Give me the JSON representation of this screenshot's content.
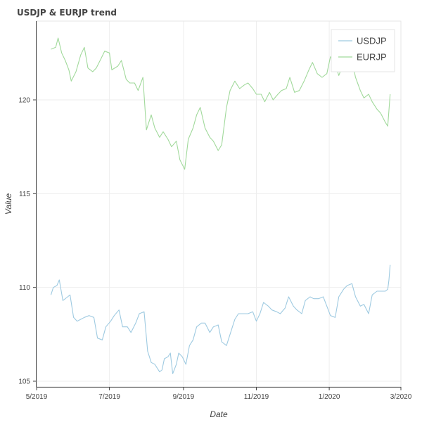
{
  "chart_data": {
    "type": "line",
    "title": "USDJP & EURJP trend",
    "xlabel": "Date",
    "ylabel": "Value",
    "xlim": [
      "2019-05-01",
      "2020-03-01"
    ],
    "ylim": [
      104.7,
      124.2
    ],
    "x_ticks": [
      {
        "date": "2019-05-01",
        "label": "5/2019"
      },
      {
        "date": "2019-07-01",
        "label": "7/2019"
      },
      {
        "date": "2019-09-01",
        "label": "9/2019"
      },
      {
        "date": "2019-11-01",
        "label": "11/2019"
      },
      {
        "date": "2020-01-01",
        "label": "1/2020"
      },
      {
        "date": "2020-03-01",
        "label": "3/2020"
      }
    ],
    "y_ticks": [
      105,
      110,
      115,
      120
    ],
    "grid": true,
    "legend_position": "top-right",
    "series": [
      {
        "name": "USDJP",
        "color": "#9ecae1",
        "points": [
          [
            "2019-05-13",
            109.6
          ],
          [
            "2019-05-15",
            110.0
          ],
          [
            "2019-05-18",
            110.1
          ],
          [
            "2019-05-20",
            110.4
          ],
          [
            "2019-05-23",
            109.3
          ],
          [
            "2019-05-27",
            109.5
          ],
          [
            "2019-05-29",
            109.6
          ],
          [
            "2019-06-01",
            108.4
          ],
          [
            "2019-06-04",
            108.2
          ],
          [
            "2019-06-07",
            108.3
          ],
          [
            "2019-06-10",
            108.4
          ],
          [
            "2019-06-14",
            108.5
          ],
          [
            "2019-06-18",
            108.4
          ],
          [
            "2019-06-21",
            107.3
          ],
          [
            "2019-06-25",
            107.2
          ],
          [
            "2019-06-28",
            107.9
          ],
          [
            "2019-07-02",
            108.2
          ],
          [
            "2019-07-05",
            108.5
          ],
          [
            "2019-07-09",
            108.8
          ],
          [
            "2019-07-12",
            107.9
          ],
          [
            "2019-07-16",
            107.9
          ],
          [
            "2019-07-19",
            107.6
          ],
          [
            "2019-07-23",
            108.1
          ],
          [
            "2019-07-26",
            108.6
          ],
          [
            "2019-07-30",
            108.7
          ],
          [
            "2019-08-02",
            106.6
          ],
          [
            "2019-08-05",
            106.0
          ],
          [
            "2019-08-08",
            105.9
          ],
          [
            "2019-08-12",
            105.5
          ],
          [
            "2019-08-14",
            105.6
          ],
          [
            "2019-08-16",
            106.2
          ],
          [
            "2019-08-19",
            106.3
          ],
          [
            "2019-08-21",
            106.5
          ],
          [
            "2019-08-23",
            105.4
          ],
          [
            "2019-08-26",
            105.9
          ],
          [
            "2019-08-28",
            106.5
          ],
          [
            "2019-08-31",
            106.3
          ],
          [
            "2019-09-03",
            105.9
          ],
          [
            "2019-09-06",
            106.9
          ],
          [
            "2019-09-09",
            107.2
          ],
          [
            "2019-09-12",
            107.9
          ],
          [
            "2019-09-16",
            108.1
          ],
          [
            "2019-09-19",
            108.1
          ],
          [
            "2019-09-23",
            107.6
          ],
          [
            "2019-09-26",
            107.9
          ],
          [
            "2019-09-30",
            108.0
          ],
          [
            "2019-10-03",
            107.1
          ],
          [
            "2019-10-07",
            106.9
          ],
          [
            "2019-10-10",
            107.5
          ],
          [
            "2019-10-14",
            108.3
          ],
          [
            "2019-10-17",
            108.6
          ],
          [
            "2019-10-21",
            108.6
          ],
          [
            "2019-10-25",
            108.6
          ],
          [
            "2019-10-29",
            108.7
          ],
          [
            "2019-11-01",
            108.2
          ],
          [
            "2019-11-04",
            108.6
          ],
          [
            "2019-11-07",
            109.2
          ],
          [
            "2019-11-11",
            109.0
          ],
          [
            "2019-11-14",
            108.8
          ],
          [
            "2019-11-18",
            108.7
          ],
          [
            "2019-11-21",
            108.6
          ],
          [
            "2019-11-25",
            108.9
          ],
          [
            "2019-11-28",
            109.5
          ],
          [
            "2019-12-02",
            109.0
          ],
          [
            "2019-12-05",
            108.8
          ],
          [
            "2019-12-09",
            108.6
          ],
          [
            "2019-12-12",
            109.3
          ],
          [
            "2019-12-16",
            109.5
          ],
          [
            "2019-12-19",
            109.4
          ],
          [
            "2019-12-23",
            109.4
          ],
          [
            "2019-12-27",
            109.5
          ],
          [
            "2019-12-30",
            109.0
          ],
          [
            "2020-01-02",
            108.5
          ],
          [
            "2020-01-06",
            108.4
          ],
          [
            "2020-01-09",
            109.5
          ],
          [
            "2020-01-13",
            109.9
          ],
          [
            "2020-01-16",
            110.1
          ],
          [
            "2020-01-20",
            110.2
          ],
          [
            "2020-01-23",
            109.5
          ],
          [
            "2020-01-27",
            109.0
          ],
          [
            "2020-01-30",
            109.1
          ],
          [
            "2020-02-03",
            108.6
          ],
          [
            "2020-02-06",
            109.6
          ],
          [
            "2020-02-10",
            109.8
          ],
          [
            "2020-02-13",
            109.8
          ],
          [
            "2020-02-17",
            109.8
          ],
          [
            "2020-02-19",
            109.9
          ],
          [
            "2020-02-20",
            110.4
          ],
          [
            "2020-02-21",
            111.2
          ]
        ]
      },
      {
        "name": "EURJP",
        "color": "#a1d99b",
        "points": [
          [
            "2019-05-13",
            122.7
          ],
          [
            "2019-05-17",
            122.8
          ],
          [
            "2019-05-19",
            123.3
          ],
          [
            "2019-05-22",
            122.5
          ],
          [
            "2019-05-25",
            122.1
          ],
          [
            "2019-05-28",
            121.6
          ],
          [
            "2019-05-30",
            121.0
          ],
          [
            "2019-06-03",
            121.5
          ],
          [
            "2019-06-07",
            122.4
          ],
          [
            "2019-06-10",
            122.8
          ],
          [
            "2019-06-13",
            121.7
          ],
          [
            "2019-06-17",
            121.5
          ],
          [
            "2019-06-20",
            121.7
          ],
          [
            "2019-06-24",
            122.2
          ],
          [
            "2019-06-27",
            122.6
          ],
          [
            "2019-07-01",
            122.5
          ],
          [
            "2019-07-03",
            121.6
          ],
          [
            "2019-07-08",
            121.8
          ],
          [
            "2019-07-11",
            122.1
          ],
          [
            "2019-07-15",
            121.1
          ],
          [
            "2019-07-18",
            120.9
          ],
          [
            "2019-07-22",
            120.9
          ],
          [
            "2019-07-25",
            120.5
          ],
          [
            "2019-07-29",
            121.2
          ],
          [
            "2019-08-01",
            118.4
          ],
          [
            "2019-08-05",
            119.2
          ],
          [
            "2019-08-08",
            118.5
          ],
          [
            "2019-08-12",
            118.0
          ],
          [
            "2019-08-15",
            118.3
          ],
          [
            "2019-08-19",
            117.9
          ],
          [
            "2019-08-22",
            117.5
          ],
          [
            "2019-08-26",
            117.8
          ],
          [
            "2019-08-29",
            116.8
          ],
          [
            "2019-09-02",
            116.3
          ],
          [
            "2019-09-05",
            117.9
          ],
          [
            "2019-09-09",
            118.5
          ],
          [
            "2019-09-12",
            119.2
          ],
          [
            "2019-09-15",
            119.6
          ],
          [
            "2019-09-19",
            118.5
          ],
          [
            "2019-09-23",
            118.0
          ],
          [
            "2019-09-26",
            117.8
          ],
          [
            "2019-09-30",
            117.3
          ],
          [
            "2019-10-03",
            117.6
          ],
          [
            "2019-10-07",
            119.6
          ],
          [
            "2019-10-10",
            120.5
          ],
          [
            "2019-10-14",
            121.0
          ],
          [
            "2019-10-18",
            120.6
          ],
          [
            "2019-10-22",
            120.8
          ],
          [
            "2019-10-25",
            120.9
          ],
          [
            "2019-10-29",
            120.6
          ],
          [
            "2019-11-01",
            120.3
          ],
          [
            "2019-11-05",
            120.3
          ],
          [
            "2019-11-08",
            119.9
          ],
          [
            "2019-11-12",
            120.4
          ],
          [
            "2019-11-15",
            120.0
          ],
          [
            "2019-11-19",
            120.3
          ],
          [
            "2019-11-22",
            120.5
          ],
          [
            "2019-11-26",
            120.6
          ],
          [
            "2019-11-29",
            121.2
          ],
          [
            "2019-12-03",
            120.4
          ],
          [
            "2019-12-07",
            120.5
          ],
          [
            "2019-12-11",
            121.0
          ],
          [
            "2019-12-15",
            121.6
          ],
          [
            "2019-12-18",
            122.0
          ],
          [
            "2019-12-22",
            121.4
          ],
          [
            "2019-12-26",
            121.2
          ],
          [
            "2019-12-30",
            121.4
          ],
          [
            "2020-01-02",
            122.3
          ],
          [
            "2020-01-06",
            121.9
          ],
          [
            "2020-01-09",
            121.3
          ],
          [
            "2020-01-12",
            121.8
          ],
          [
            "2020-01-16",
            121.7
          ],
          [
            "2020-01-20",
            122.1
          ],
          [
            "2020-01-23",
            121.2
          ],
          [
            "2020-01-27",
            120.5
          ],
          [
            "2020-01-30",
            120.1
          ],
          [
            "2020-02-03",
            120.3
          ],
          [
            "2020-02-06",
            119.9
          ],
          [
            "2020-02-10",
            119.5
          ],
          [
            "2020-02-13",
            119.3
          ],
          [
            "2020-02-17",
            118.8
          ],
          [
            "2020-02-19",
            118.6
          ],
          [
            "2020-02-21",
            120.3
          ]
        ]
      }
    ]
  }
}
